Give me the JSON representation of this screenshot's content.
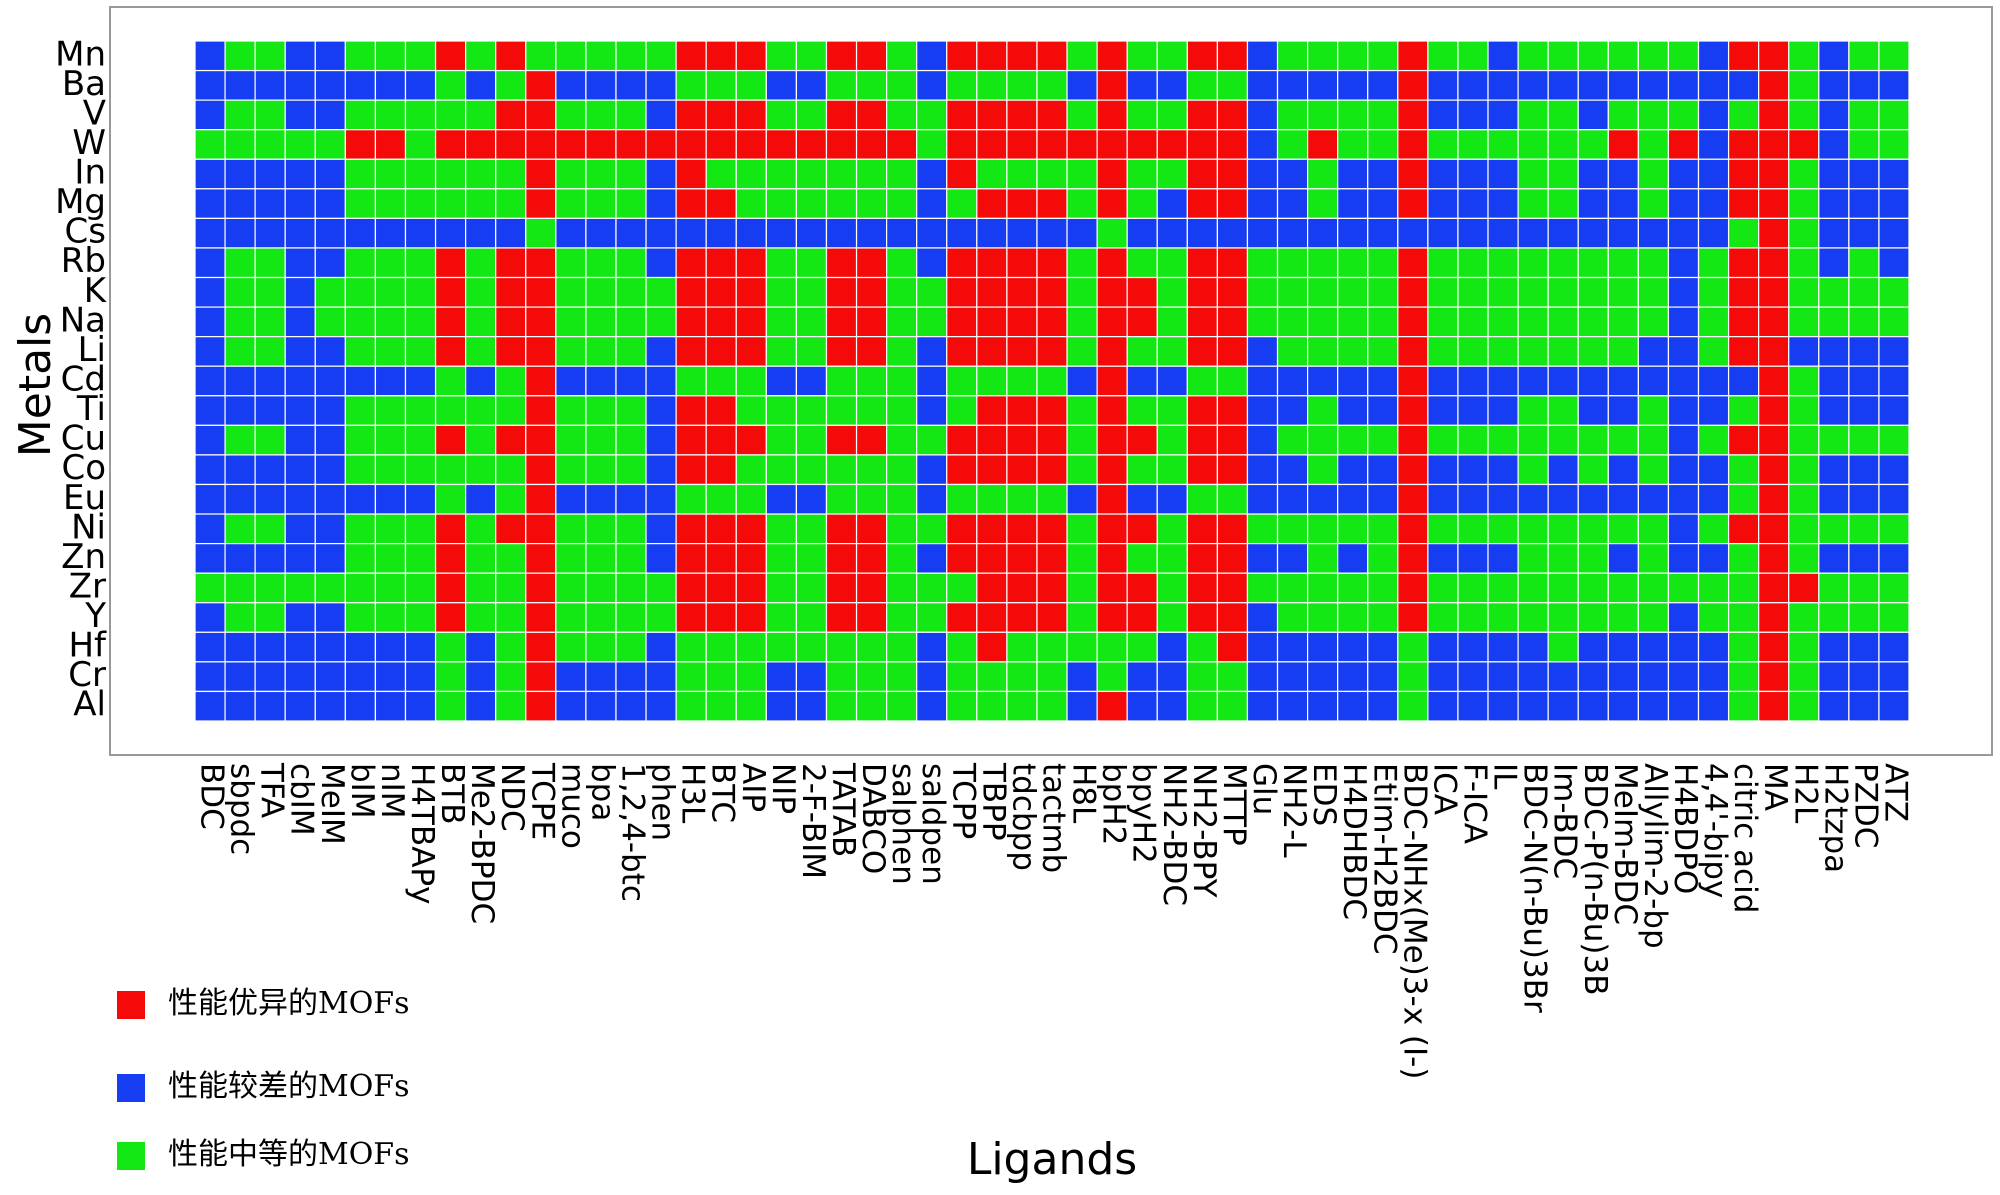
{
  "chart_data": {
    "type": "heatmap",
    "xlabel": "Ligands",
    "ylabel": "Metals",
    "x": [
      "BDC",
      "sbpdc",
      "TFA",
      "cbIM",
      "MeIM",
      "bIM",
      "nIM",
      "H4TBAPy",
      "BTB",
      "Me2-BPDC",
      "NDC",
      "TCPE",
      "muco",
      "bpa",
      "1,2,4-btc",
      "phen",
      "H3L",
      "BTC",
      "AIP",
      "NIP",
      "2-F-BIM",
      "TATAB",
      "DABCO",
      "salphen",
      "saldpen",
      "TCPP",
      "TBPP",
      "tdcbpp",
      "tactmb",
      "H8L",
      "bpH2",
      "bpyH2",
      "NH2-BDC",
      "NH2-BPY",
      "MTTP",
      "Glu",
      "NH2-L",
      "EDS",
      "H4DHBDC",
      "Etim-H2BDC",
      "BDC-NHx(Me)3-x (I-)",
      "ICA",
      "F-ICA",
      "IL",
      "BDC-N(n-Bu)3Br",
      "Im-BDC",
      "BDC-P(n-Bu)3B",
      "MeIm-BDC",
      "Allylim-2-bp",
      "H4BDPO",
      "4,4'-bipy",
      "citric acid",
      "MA",
      "H2L",
      "H2tzpa",
      "PZDC",
      "ATZ"
    ],
    "y": [
      "Mn",
      "Ba",
      "V",
      "W",
      "In",
      "Mg",
      "Cs",
      "Rb",
      "K",
      "Na",
      "Li",
      "Cd",
      "Ti",
      "Cu",
      "Co",
      "Eu",
      "Ni",
      "Zn",
      "Zr",
      "Y",
      "Hf",
      "Cr",
      "Al"
    ],
    "classes": [
      {
        "name": "性能优异的MOFs",
        "color": "#f50a0a"
      },
      {
        "name": "性能较差的MOFs",
        "color": "#173df2"
      },
      {
        "name": "性能中等的MOFs",
        "color": "#14e814"
      }
    ],
    "values": [
      [
        1,
        2,
        2,
        1,
        1,
        2,
        2,
        2,
        0,
        2,
        0,
        2,
        2,
        2,
        2,
        2,
        0,
        0,
        0,
        2,
        2,
        0,
        0,
        2,
        1,
        0,
        0,
        0,
        0,
        2,
        0,
        2,
        2,
        0,
        0,
        1,
        2,
        2,
        2,
        2,
        0,
        2,
        2,
        1,
        2,
        2,
        2,
        2,
        2,
        2,
        1,
        0,
        0,
        2,
        1,
        2,
        2
      ],
      [
        1,
        1,
        1,
        1,
        1,
        1,
        1,
        1,
        2,
        1,
        2,
        0,
        1,
        1,
        1,
        1,
        2,
        2,
        2,
        1,
        1,
        2,
        2,
        2,
        1,
        2,
        2,
        2,
        2,
        1,
        0,
        1,
        1,
        2,
        2,
        1,
        1,
        1,
        1,
        1,
        0,
        1,
        1,
        1,
        1,
        1,
        1,
        1,
        1,
        1,
        1,
        1,
        0,
        2,
        1,
        1,
        1
      ],
      [
        1,
        2,
        2,
        1,
        1,
        2,
        2,
        2,
        2,
        2,
        0,
        0,
        2,
        2,
        2,
        1,
        0,
        0,
        0,
        2,
        2,
        0,
        0,
        2,
        2,
        0,
        0,
        0,
        0,
        2,
        0,
        2,
        2,
        0,
        0,
        1,
        2,
        2,
        2,
        2,
        0,
        1,
        1,
        1,
        2,
        2,
        1,
        2,
        2,
        2,
        1,
        2,
        0,
        2,
        1,
        2,
        2
      ],
      [
        2,
        2,
        2,
        2,
        2,
        0,
        0,
        2,
        0,
        0,
        0,
        0,
        0,
        0,
        0,
        0,
        0,
        0,
        0,
        0,
        0,
        0,
        0,
        0,
        2,
        0,
        0,
        0,
        0,
        0,
        0,
        0,
        0,
        0,
        0,
        1,
        2,
        0,
        2,
        2,
        0,
        2,
        2,
        2,
        2,
        2,
        2,
        0,
        2,
        0,
        1,
        0,
        0,
        0,
        1,
        2,
        2
      ],
      [
        1,
        1,
        1,
        1,
        1,
        2,
        2,
        2,
        2,
        2,
        2,
        0,
        2,
        2,
        2,
        1,
        0,
        2,
        2,
        2,
        2,
        2,
        2,
        2,
        1,
        0,
        2,
        2,
        2,
        2,
        0,
        2,
        2,
        0,
        0,
        1,
        1,
        2,
        1,
        1,
        0,
        1,
        1,
        1,
        2,
        2,
        1,
        1,
        2,
        1,
        1,
        0,
        0,
        2,
        1,
        1,
        1
      ],
      [
        1,
        1,
        1,
        1,
        1,
        2,
        2,
        2,
        2,
        2,
        2,
        0,
        2,
        2,
        2,
        1,
        0,
        0,
        2,
        2,
        2,
        2,
        2,
        2,
        1,
        2,
        0,
        0,
        0,
        2,
        0,
        2,
        1,
        0,
        0,
        1,
        1,
        2,
        1,
        1,
        0,
        1,
        1,
        1,
        2,
        2,
        1,
        1,
        2,
        1,
        1,
        0,
        0,
        2,
        1,
        1,
        1
      ],
      [
        1,
        1,
        1,
        1,
        1,
        1,
        1,
        1,
        1,
        1,
        1,
        2,
        1,
        1,
        1,
        1,
        1,
        1,
        1,
        1,
        1,
        1,
        1,
        1,
        1,
        1,
        1,
        1,
        1,
        1,
        2,
        1,
        1,
        1,
        1,
        1,
        1,
        1,
        1,
        1,
        1,
        1,
        1,
        1,
        1,
        1,
        1,
        1,
        1,
        1,
        1,
        2,
        0,
        2,
        1,
        1,
        1
      ],
      [
        1,
        2,
        2,
        1,
        1,
        2,
        2,
        2,
        0,
        2,
        0,
        0,
        2,
        2,
        2,
        1,
        0,
        0,
        0,
        2,
        2,
        0,
        0,
        2,
        1,
        0,
        0,
        0,
        0,
        2,
        0,
        2,
        2,
        0,
        0,
        2,
        2,
        2,
        2,
        2,
        0,
        2,
        2,
        2,
        2,
        2,
        2,
        2,
        2,
        1,
        2,
        0,
        0,
        2,
        1,
        2,
        1
      ],
      [
        1,
        2,
        2,
        1,
        2,
        2,
        2,
        2,
        0,
        2,
        0,
        0,
        2,
        2,
        2,
        2,
        0,
        0,
        0,
        2,
        2,
        0,
        0,
        2,
        2,
        0,
        0,
        0,
        0,
        2,
        0,
        0,
        2,
        0,
        0,
        2,
        2,
        2,
        2,
        2,
        0,
        2,
        2,
        2,
        2,
        2,
        2,
        2,
        2,
        1,
        2,
        0,
        0,
        2,
        2,
        2,
        2
      ],
      [
        1,
        2,
        2,
        1,
        2,
        2,
        2,
        2,
        0,
        2,
        0,
        0,
        2,
        2,
        2,
        2,
        0,
        0,
        0,
        2,
        2,
        0,
        0,
        2,
        2,
        0,
        0,
        0,
        0,
        2,
        0,
        0,
        2,
        0,
        0,
        2,
        2,
        2,
        2,
        2,
        0,
        2,
        2,
        2,
        2,
        2,
        2,
        2,
        2,
        1,
        2,
        0,
        0,
        2,
        2,
        2,
        2
      ],
      [
        1,
        2,
        2,
        1,
        1,
        2,
        2,
        2,
        0,
        2,
        0,
        0,
        2,
        2,
        2,
        1,
        0,
        0,
        0,
        2,
        2,
        0,
        0,
        2,
        1,
        0,
        0,
        0,
        0,
        2,
        0,
        2,
        2,
        0,
        0,
        1,
        2,
        2,
        2,
        2,
        0,
        2,
        2,
        2,
        2,
        2,
        2,
        2,
        1,
        1,
        2,
        0,
        0,
        1,
        1,
        1,
        1
      ],
      [
        1,
        1,
        1,
        1,
        1,
        1,
        1,
        1,
        2,
        1,
        2,
        0,
        1,
        1,
        1,
        1,
        2,
        2,
        2,
        1,
        1,
        2,
        2,
        2,
        1,
        2,
        2,
        2,
        2,
        1,
        0,
        1,
        1,
        2,
        2,
        1,
        1,
        1,
        1,
        1,
        0,
        1,
        1,
        1,
        1,
        1,
        1,
        1,
        1,
        1,
        1,
        1,
        0,
        2,
        1,
        1,
        1
      ],
      [
        1,
        1,
        1,
        1,
        1,
        2,
        2,
        2,
        2,
        2,
        2,
        0,
        2,
        2,
        2,
        1,
        0,
        0,
        2,
        2,
        2,
        2,
        2,
        2,
        1,
        2,
        0,
        0,
        0,
        2,
        0,
        2,
        2,
        0,
        0,
        1,
        1,
        2,
        1,
        1,
        0,
        1,
        1,
        1,
        2,
        2,
        1,
        1,
        2,
        1,
        1,
        2,
        0,
        2,
        1,
        1,
        1
      ],
      [
        1,
        2,
        2,
        1,
        1,
        2,
        2,
        2,
        0,
        2,
        0,
        0,
        2,
        2,
        2,
        1,
        0,
        0,
        0,
        2,
        2,
        0,
        0,
        2,
        2,
        0,
        0,
        0,
        0,
        2,
        0,
        0,
        2,
        0,
        0,
        1,
        2,
        2,
        2,
        2,
        0,
        2,
        2,
        2,
        2,
        2,
        2,
        2,
        2,
        1,
        2,
        0,
        0,
        2,
        2,
        2,
        2
      ],
      [
        1,
        1,
        1,
        1,
        1,
        2,
        2,
        2,
        2,
        2,
        2,
        0,
        2,
        2,
        2,
        1,
        0,
        0,
        2,
        2,
        2,
        2,
        2,
        2,
        1,
        0,
        0,
        0,
        0,
        2,
        0,
        2,
        2,
        0,
        0,
        1,
        1,
        2,
        1,
        1,
        0,
        1,
        1,
        1,
        2,
        1,
        2,
        1,
        2,
        1,
        1,
        2,
        0,
        2,
        1,
        1,
        1
      ],
      [
        1,
        1,
        1,
        1,
        1,
        1,
        1,
        1,
        2,
        1,
        2,
        0,
        1,
        1,
        1,
        1,
        2,
        2,
        2,
        1,
        1,
        2,
        2,
        2,
        1,
        2,
        2,
        2,
        2,
        1,
        0,
        1,
        1,
        2,
        2,
        1,
        1,
        1,
        1,
        1,
        0,
        1,
        1,
        1,
        1,
        1,
        1,
        1,
        1,
        1,
        1,
        2,
        0,
        2,
        1,
        1,
        1
      ],
      [
        1,
        2,
        2,
        1,
        1,
        2,
        2,
        2,
        0,
        2,
        0,
        0,
        2,
        2,
        2,
        1,
        0,
        0,
        0,
        2,
        2,
        0,
        0,
        2,
        2,
        0,
        0,
        0,
        0,
        2,
        0,
        0,
        2,
        0,
        0,
        2,
        2,
        2,
        2,
        2,
        0,
        2,
        2,
        2,
        2,
        2,
        2,
        2,
        2,
        1,
        2,
        0,
        0,
        2,
        2,
        2,
        2
      ],
      [
        1,
        1,
        1,
        1,
        1,
        2,
        2,
        2,
        0,
        2,
        2,
        0,
        2,
        2,
        2,
        1,
        0,
        0,
        0,
        2,
        2,
        0,
        0,
        2,
        1,
        0,
        0,
        0,
        0,
        2,
        0,
        2,
        2,
        0,
        0,
        1,
        1,
        2,
        1,
        2,
        0,
        1,
        1,
        1,
        2,
        2,
        2,
        1,
        2,
        1,
        1,
        2,
        0,
        2,
        1,
        1,
        1
      ],
      [
        2,
        2,
        2,
        2,
        2,
        2,
        2,
        2,
        0,
        2,
        2,
        0,
        2,
        2,
        2,
        2,
        0,
        0,
        0,
        2,
        2,
        0,
        0,
        2,
        2,
        2,
        0,
        0,
        0,
        2,
        0,
        0,
        2,
        0,
        0,
        2,
        2,
        2,
        2,
        2,
        0,
        2,
        2,
        2,
        2,
        2,
        2,
        2,
        2,
        2,
        2,
        2,
        0,
        0,
        2,
        2,
        2
      ],
      [
        1,
        2,
        2,
        1,
        1,
        2,
        2,
        2,
        0,
        2,
        2,
        0,
        2,
        2,
        2,
        2,
        0,
        0,
        0,
        2,
        2,
        0,
        0,
        2,
        2,
        0,
        0,
        0,
        0,
        2,
        0,
        0,
        2,
        0,
        0,
        1,
        2,
        2,
        2,
        2,
        0,
        2,
        2,
        2,
        2,
        2,
        2,
        2,
        2,
        1,
        2,
        2,
        0,
        2,
        2,
        2,
        2
      ],
      [
        1,
        1,
        1,
        1,
        1,
        1,
        1,
        1,
        2,
        1,
        2,
        0,
        2,
        2,
        2,
        1,
        2,
        2,
        2,
        2,
        2,
        2,
        2,
        2,
        1,
        2,
        0,
        2,
        2,
        2,
        2,
        2,
        1,
        2,
        0,
        1,
        1,
        1,
        1,
        1,
        2,
        1,
        1,
        1,
        1,
        2,
        1,
        1,
        1,
        1,
        1,
        2,
        0,
        2,
        1,
        1,
        1
      ],
      [
        1,
        1,
        1,
        1,
        1,
        1,
        1,
        1,
        2,
        1,
        2,
        0,
        1,
        1,
        1,
        1,
        2,
        2,
        2,
        1,
        1,
        2,
        2,
        2,
        1,
        2,
        2,
        2,
        2,
        1,
        2,
        1,
        1,
        2,
        2,
        1,
        1,
        1,
        1,
        1,
        2,
        1,
        1,
        1,
        1,
        1,
        1,
        1,
        1,
        1,
        1,
        2,
        0,
        2,
        1,
        1,
        1
      ],
      [
        1,
        1,
        1,
        1,
        1,
        1,
        1,
        1,
        2,
        1,
        2,
        0,
        1,
        1,
        1,
        1,
        2,
        2,
        2,
        1,
        1,
        2,
        2,
        2,
        1,
        2,
        2,
        2,
        2,
        1,
        0,
        1,
        1,
        2,
        2,
        1,
        1,
        1,
        1,
        1,
        2,
        1,
        1,
        1,
        1,
        1,
        1,
        1,
        1,
        1,
        1,
        2,
        0,
        2,
        1,
        1,
        1
      ]
    ]
  }
}
